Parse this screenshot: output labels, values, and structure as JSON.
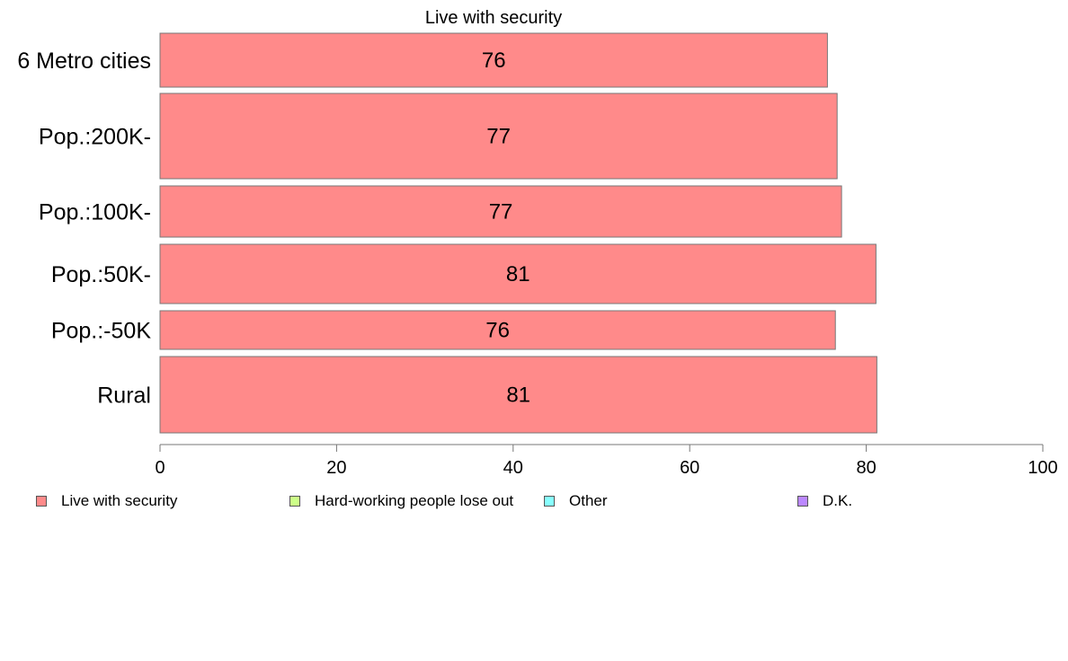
{
  "chart_data": {
    "type": "bar",
    "orientation": "horizontal",
    "title": "Live with security",
    "categories": [
      "6 Metro cities",
      "Pop.:200K-",
      "Pop.:100K-",
      "Pop.:50K-",
      "Pop.:-50K",
      "Rural"
    ],
    "series": [
      {
        "name": "Live with security",
        "values": [
          75.6,
          76.7,
          77.2,
          81.1,
          76.5,
          81.2
        ],
        "labels": [
          "76",
          "77",
          "77",
          "81",
          "76",
          "81"
        ],
        "color": "#ff8a8a"
      }
    ],
    "xlim": [
      0,
      100
    ],
    "xticks": [
      "0",
      "20",
      "40",
      "60",
      "80",
      "100"
    ],
    "grid": false,
    "legend_position": "bottom"
  },
  "legend": [
    {
      "label": "Live with security",
      "color": "#ff8a8a"
    },
    {
      "label": "Hard-working people lose out",
      "color": "#ccff88"
    },
    {
      "label": "Other",
      "color": "#88ffff"
    },
    {
      "label": "D.K.",
      "color": "#bb88ff"
    }
  ]
}
